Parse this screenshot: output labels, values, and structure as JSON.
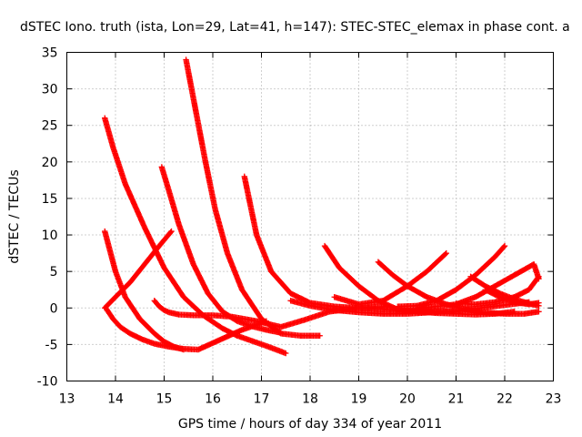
{
  "chart_data": {
    "type": "scatter",
    "title": "dSTEC Iono. truth (ista, Lon=29, Lat=41, h=147): STEC-STEC_elemax in phase cont. a",
    "xlabel": "GPS time / hours of day 334 of year 2011",
    "ylabel": "dSTEC  / TECUs",
    "xlim": [
      13,
      23
    ],
    "ylim": [
      -10,
      35
    ],
    "x_ticks": [
      13,
      14,
      15,
      16,
      17,
      18,
      19,
      20,
      21,
      22,
      23
    ],
    "y_ticks": [
      -10,
      -5,
      0,
      5,
      10,
      15,
      20,
      25,
      30,
      35
    ],
    "grid": true,
    "marker": "+",
    "color": "#ff0000",
    "series": [
      {
        "x": [
          13.78,
          13.9,
          14.0,
          14.2,
          14.5,
          14.8,
          15.0,
          15.2,
          15.4
        ],
        "y": [
          10.5,
          7.5,
          5.0,
          1.5,
          -1.5,
          -3.5,
          -4.6,
          -5.3,
          -5.7
        ]
      },
      {
        "x": [
          13.78,
          14.0,
          14.3,
          14.6,
          14.9,
          15.15
        ],
        "y": [
          0.0,
          1.5,
          3.5,
          6.0,
          8.5,
          10.5
        ]
      },
      {
        "x": [
          13.8,
          13.95,
          14.1,
          14.3,
          14.55,
          14.8,
          15.1,
          15.4,
          15.7,
          16.0,
          16.3,
          16.6,
          16.9,
          17.1
        ],
        "y": [
          0.0,
          -1.5,
          -2.6,
          -3.5,
          -4.3,
          -4.9,
          -5.3,
          -5.6,
          -5.7,
          -4.8,
          -3.9,
          -3.0,
          -2.3,
          -1.8
        ]
      },
      {
        "x": [
          13.78,
          13.95,
          14.2,
          14.6,
          15.0,
          15.4,
          15.8,
          16.2,
          16.5,
          16.8,
          17.1,
          17.5
        ],
        "y": [
          26.0,
          22.0,
          17.0,
          11.0,
          5.5,
          1.5,
          -1.0,
          -2.8,
          -3.8,
          -4.5,
          -5.2,
          -6.2
        ]
      },
      {
        "x": [
          14.8,
          14.9,
          15.0,
          15.1,
          15.3,
          15.6,
          16.0,
          16.4,
          16.9,
          17.4,
          17.9,
          18.4,
          19.0,
          19.6
        ],
        "y": [
          1.0,
          0.2,
          -0.3,
          -0.6,
          -0.9,
          -1.0,
          -1.0,
          -1.2,
          -1.8,
          -2.6,
          -1.6,
          -0.5,
          0.0,
          0.2
        ]
      },
      {
        "x": [
          14.95,
          15.1,
          15.3,
          15.6,
          15.9,
          16.2,
          16.5,
          16.8,
          17.1,
          17.4
        ],
        "y": [
          19.3,
          16.0,
          11.5,
          6.0,
          2.0,
          -0.5,
          -1.8,
          -2.5,
          -3.0,
          -3.4
        ]
      },
      {
        "x": [
          15.45,
          15.65,
          15.85,
          16.05,
          16.3,
          16.6,
          17.0,
          17.4,
          17.8,
          18.2
        ],
        "y": [
          34.0,
          27.0,
          20.0,
          13.5,
          7.5,
          2.5,
          -1.5,
          -3.5,
          -3.8,
          -3.8
        ]
      },
      {
        "x": [
          16.65,
          16.9,
          17.2,
          17.6,
          18.0,
          18.5,
          19.0,
          19.5,
          20.0,
          20.5,
          21.0
        ],
        "y": [
          18.0,
          10.0,
          5.0,
          2.0,
          0.7,
          0.2,
          0.0,
          -0.2,
          -0.4,
          -0.4,
          -0.5
        ]
      },
      {
        "x": [
          17.6,
          18.0,
          18.5,
          19.0,
          19.5,
          20.0,
          20.5,
          21.0,
          21.5,
          22.0,
          22.5
        ],
        "y": [
          1.0,
          0.3,
          -0.3,
          -0.6,
          -0.8,
          -0.8,
          -0.6,
          -0.4,
          0.0,
          0.4,
          0.8
        ]
      },
      {
        "x": [
          18.3,
          18.6,
          19.0,
          19.4,
          19.8,
          20.2,
          20.6,
          21.0,
          21.4,
          21.8,
          22.2
        ],
        "y": [
          8.5,
          5.5,
          3.0,
          1.0,
          -0.2,
          -0.5,
          -0.7,
          -0.8,
          -0.9,
          -0.8,
          -0.5
        ]
      },
      {
        "x": [
          18.5,
          19.0,
          19.5,
          20.0,
          20.4,
          20.8
        ],
        "y": [
          1.5,
          0.5,
          1.0,
          3.0,
          5.0,
          7.5
        ]
      },
      {
        "x": [
          19.4,
          19.7,
          20.0,
          20.4,
          20.8,
          21.2,
          21.6,
          22.0,
          22.4,
          22.7
        ],
        "y": [
          6.3,
          4.5,
          3.0,
          1.5,
          0.5,
          -0.2,
          -0.6,
          -0.8,
          -0.8,
          -0.5
        ]
      },
      {
        "x": [
          19.8,
          20.2,
          20.6,
          21.0,
          21.4,
          21.8,
          22.0
        ],
        "y": [
          0.2,
          0.3,
          1.0,
          2.5,
          4.5,
          7.0,
          8.5
        ]
      },
      {
        "x": [
          20.2,
          20.6,
          21.0,
          21.4,
          21.8,
          22.2,
          22.6,
          22.7
        ],
        "y": [
          0.0,
          0.2,
          0.5,
          1.5,
          3.0,
          4.5,
          6.0,
          4.0
        ]
      },
      {
        "x": [
          21.0,
          21.4,
          21.8,
          22.2,
          22.5,
          22.7
        ],
        "y": [
          0.6,
          0.5,
          0.8,
          1.5,
          2.5,
          4.3
        ]
      },
      {
        "x": [
          21.3,
          21.6,
          21.9,
          22.2,
          22.5,
          22.7
        ],
        "y": [
          4.3,
          3.0,
          2.0,
          1.2,
          0.6,
          0.3
        ]
      },
      {
        "x": [
          21.6,
          21.9,
          22.2,
          22.5,
          22.7
        ],
        "y": [
          2.5,
          1.5,
          0.8,
          0.5,
          0.7
        ]
      }
    ]
  }
}
